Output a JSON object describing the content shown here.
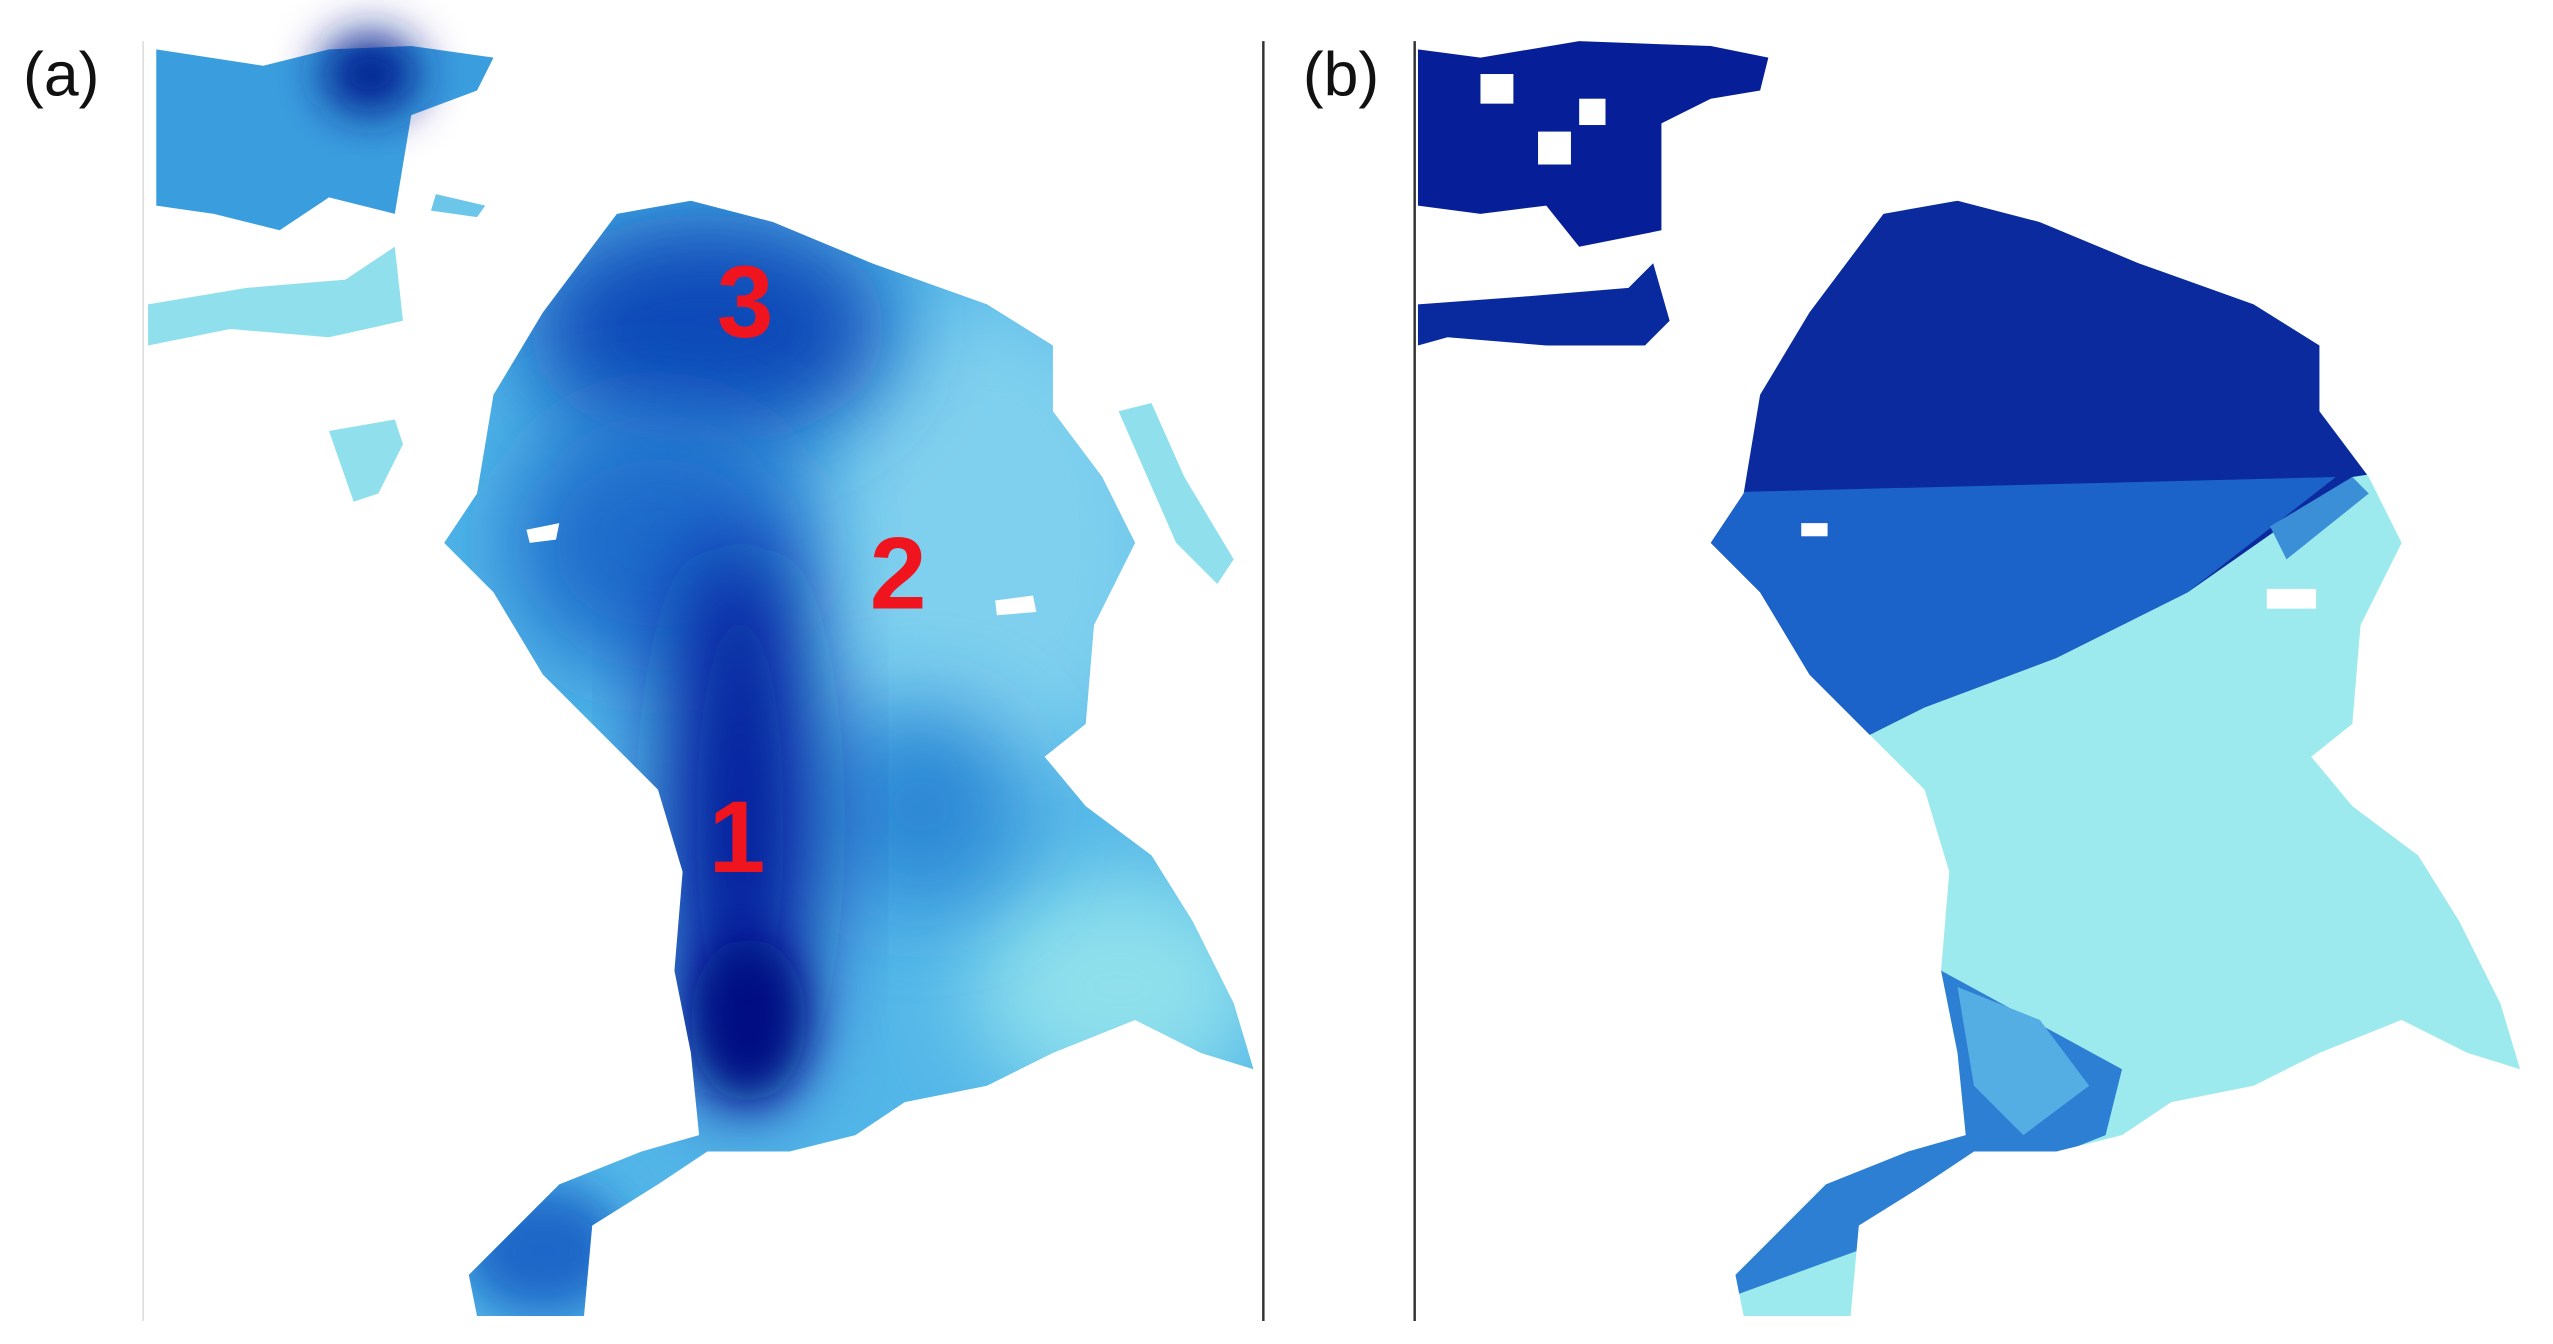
{
  "panels": [
    {
      "label": "(a)",
      "annotations": [
        "1",
        "2",
        "3"
      ]
    },
    {
      "label": "(b)"
    }
  ]
}
